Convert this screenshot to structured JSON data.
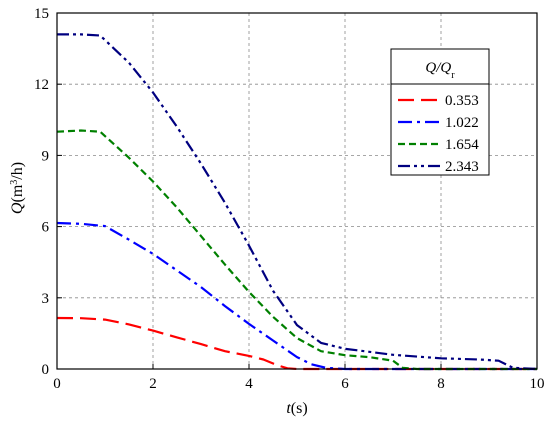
{
  "chart_data": {
    "type": "line",
    "xlabel_var": "t",
    "xlabel_unit": "(s)",
    "ylabel_var": "Q",
    "ylabel_unit_pre": "(m",
    "ylabel_unit_sup": "3",
    "ylabel_unit_post": "/h)",
    "xlim": [
      0,
      10
    ],
    "ylim": [
      0,
      15
    ],
    "xticks": [
      0,
      2,
      4,
      6,
      8,
      10
    ],
    "yticks": [
      0,
      3,
      6,
      9,
      12,
      15
    ],
    "grid": true,
    "legend": {
      "placement": "top-right",
      "title_main": "Q/Q",
      "title_sub": "r"
    },
    "series": [
      {
        "name": "0.353",
        "color": "#ff0000",
        "dash": "long-dash",
        "points": [
          [
            0,
            2.15
          ],
          [
            0.5,
            2.14
          ],
          [
            1.0,
            2.08
          ],
          [
            1.5,
            1.88
          ],
          [
            2.0,
            1.62
          ],
          [
            2.5,
            1.33
          ],
          [
            3.0,
            1.05
          ],
          [
            3.5,
            0.75
          ],
          [
            4.0,
            0.55
          ],
          [
            4.3,
            0.4
          ],
          [
            4.6,
            0.15
          ],
          [
            4.8,
            0.03
          ],
          [
            5.0,
            0.0
          ],
          [
            6.0,
            0.0
          ],
          [
            8.0,
            0.0
          ],
          [
            10.0,
            0.0
          ]
        ]
      },
      {
        "name": "1.022",
        "color": "#0000ff",
        "dash": "dash-dot",
        "points": [
          [
            0,
            6.15
          ],
          [
            0.5,
            6.12
          ],
          [
            1.0,
            6.02
          ],
          [
            1.5,
            5.45
          ],
          [
            2.0,
            4.85
          ],
          [
            2.5,
            4.15
          ],
          [
            3.0,
            3.45
          ],
          [
            3.5,
            2.65
          ],
          [
            4.0,
            1.9
          ],
          [
            4.5,
            1.2
          ],
          [
            5.0,
            0.5
          ],
          [
            5.3,
            0.2
          ],
          [
            5.6,
            0.05
          ],
          [
            6.0,
            0.0
          ],
          [
            8.0,
            0.0
          ],
          [
            10.0,
            0.0
          ]
        ]
      },
      {
        "name": "1.654",
        "color": "#008000",
        "dash": "short-dash",
        "points": [
          [
            0,
            10.0
          ],
          [
            0.5,
            10.05
          ],
          [
            0.9,
            10.0
          ],
          [
            1.5,
            8.9
          ],
          [
            2.0,
            7.9
          ],
          [
            2.5,
            6.8
          ],
          [
            3.0,
            5.6
          ],
          [
            3.5,
            4.4
          ],
          [
            4.0,
            3.25
          ],
          [
            4.5,
            2.2
          ],
          [
            5.0,
            1.3
          ],
          [
            5.5,
            0.75
          ],
          [
            6.0,
            0.58
          ],
          [
            6.5,
            0.5
          ],
          [
            7.0,
            0.35
          ],
          [
            7.2,
            0.05
          ],
          [
            7.5,
            0.0
          ],
          [
            10.0,
            0.0
          ]
        ]
      },
      {
        "name": "2.343",
        "color": "#000080",
        "dash": "dash-dot-dot",
        "points": [
          [
            0,
            14.1
          ],
          [
            0.5,
            14.1
          ],
          [
            0.9,
            14.05
          ],
          [
            1.5,
            12.9
          ],
          [
            2.0,
            11.65
          ],
          [
            2.5,
            10.2
          ],
          [
            3.0,
            8.65
          ],
          [
            3.5,
            7.0
          ],
          [
            4.0,
            5.2
          ],
          [
            4.5,
            3.3
          ],
          [
            5.0,
            1.85
          ],
          [
            5.5,
            1.1
          ],
          [
            6.0,
            0.85
          ],
          [
            7.0,
            0.6
          ],
          [
            8.0,
            0.45
          ],
          [
            8.8,
            0.4
          ],
          [
            9.2,
            0.35
          ],
          [
            9.5,
            0.05
          ],
          [
            10.0,
            0.0
          ]
        ]
      }
    ]
  }
}
